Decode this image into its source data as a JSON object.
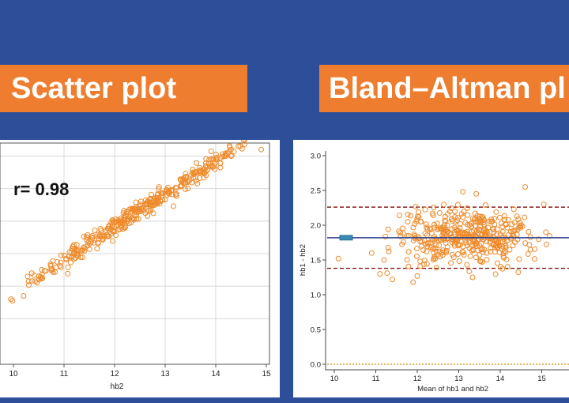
{
  "banners": {
    "left_title": "Scatter plot",
    "right_title": "Bland–Altman pl"
  },
  "colors": {
    "background": "#2d4f9a",
    "banner": "#ee7d2f",
    "marker": "#ee8a2a",
    "mean_line": "#2d3f8f",
    "loa_line": "#8b1a1a",
    "zero_line": "#d9a020",
    "grid": "#d8d8d8"
  },
  "chart_data": [
    {
      "type": "scatter",
      "annotation": "r= 0.98",
      "xlabel": "hb2",
      "ylabel": "",
      "x_ticks": [
        "10",
        "11",
        "12",
        "13",
        "14",
        "15"
      ],
      "xlim": [
        9.9,
        15.05
      ],
      "ylim": [
        9.6,
        16.4
      ],
      "grid": true,
      "trend": {
        "slope": 1.0,
        "intercept": 1.82,
        "x_from": 10.4,
        "x_to": 14.6,
        "n": 420,
        "spread": 0.15
      },
      "points": [
        {
          "x": 9.95,
          "y": 11.6
        },
        {
          "x": 9.98,
          "y": 11.55
        },
        {
          "x": 10.3,
          "y": 12.15
        },
        {
          "x": 10.2,
          "y": 11.7
        },
        {
          "x": 10.28,
          "y": 12.3
        },
        {
          "x": 14.9,
          "y": 16.2
        },
        {
          "x": 14.45,
          "y": 16.3
        },
        {
          "x": 14.2,
          "y": 16.0
        },
        {
          "x": 14.0,
          "y": 15.9
        }
      ]
    },
    {
      "type": "scatter",
      "xlabel": "Mean of hb1 and hb2",
      "ylabel": "hb1 - hb2",
      "x_ticks": [
        "10",
        "11",
        "12",
        "13",
        "14",
        "15"
      ],
      "y_ticks": [
        "0.0",
        "0.5",
        "1.0",
        "1.5",
        "2.0",
        "2.5",
        "3.0"
      ],
      "xlim": [
        9.8,
        15.75
      ],
      "ylim": [
        -0.05,
        3.05
      ],
      "mean_difference": 1.82,
      "upper_limit_of_agreement": 2.26,
      "lower_limit_of_agreement": 1.38,
      "zero_line": 0.0,
      "cloud": {
        "x_center": 13.2,
        "x_sd": 0.85,
        "y_center": 1.82,
        "y_sd": 0.2,
        "n": 420
      },
      "points": [
        {
          "x": 10.1,
          "y": 1.52
        },
        {
          "x": 10.9,
          "y": 1.6
        },
        {
          "x": 11.1,
          "y": 1.3
        },
        {
          "x": 11.3,
          "y": 1.94
        },
        {
          "x": 11.4,
          "y": 1.22
        },
        {
          "x": 11.9,
          "y": 1.18
        },
        {
          "x": 13.1,
          "y": 2.48
        },
        {
          "x": 14.6,
          "y": 2.55
        },
        {
          "x": 15.05,
          "y": 2.3
        },
        {
          "x": 15.1,
          "y": 1.9
        },
        {
          "x": 11.2,
          "y": 1.5
        },
        {
          "x": 12.0,
          "y": 1.27
        }
      ]
    }
  ]
}
